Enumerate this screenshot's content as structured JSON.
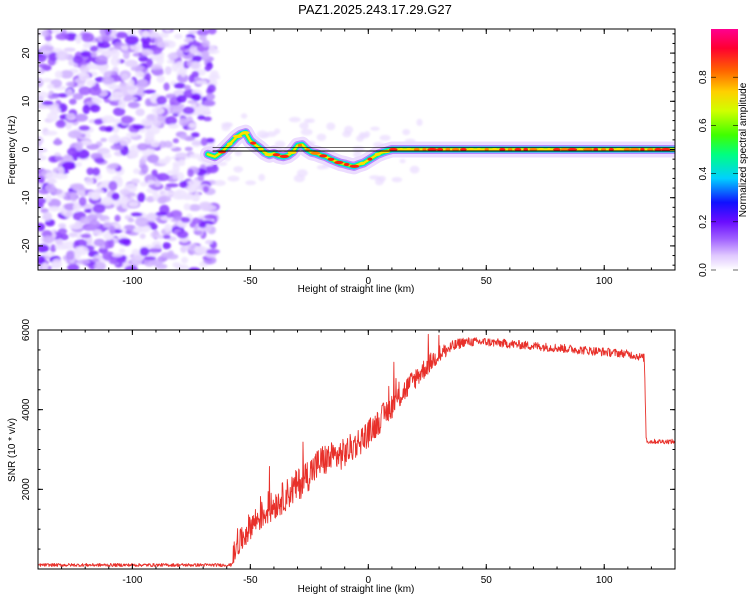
{
  "title": "PAZ1.2025.243.17.29.G27",
  "chart_data": [
    {
      "type": "heatmap",
      "xlabel": "Height of straight line (km)",
      "ylabel": "Frequency (Hz)",
      "xlim": [
        -140,
        130
      ],
      "ylim": [
        -25,
        25
      ],
      "xticks": [
        -100,
        -50,
        0,
        50,
        100
      ],
      "yticks": [
        -20,
        -10,
        0,
        10,
        20
      ],
      "noise_region_x": [
        -140,
        -65
      ],
      "ridge": {
        "x": [
          -68,
          -65,
          -62,
          -60,
          -58,
          -56,
          -54,
          -52,
          -50,
          -48,
          -46,
          -44,
          -42,
          -40,
          -38,
          -36,
          -34,
          -32,
          -30,
          -28,
          -26,
          -24,
          -22,
          -20,
          -18,
          -16,
          -14,
          -12,
          -10,
          -8,
          -6,
          -4,
          -2,
          0,
          2,
          4,
          6,
          8,
          10,
          12,
          15,
          20,
          25,
          30,
          40,
          50,
          60,
          70,
          80,
          90,
          100,
          110,
          120,
          130
        ],
        "y": [
          -1,
          -1.5,
          -0.5,
          0.5,
          1.5,
          2.5,
          3.2,
          3.5,
          1.8,
          1.0,
          0.3,
          -0.6,
          -1.1,
          -0.8,
          -1.3,
          -1.5,
          -1.2,
          -0.5,
          0.8,
          1.0,
          0.0,
          -0.6,
          -0.8,
          -1.2,
          -1.5,
          -2.0,
          -2.4,
          -2.8,
          -3.0,
          -3.3,
          -3.5,
          -3.1,
          -2.8,
          -2.2,
          -1.6,
          -1.0,
          -0.6,
          -0.3,
          0.0,
          0.0,
          0.0,
          0.0,
          0.0,
          0.0,
          0.0,
          0.0,
          0.0,
          0.0,
          0.0,
          0.0,
          0.0,
          0.0,
          0.0,
          0.0
        ]
      },
      "reference_line_y": 0
    },
    {
      "type": "line",
      "xlabel": "Height of straight line (km)",
      "ylabel": "SNR (10 * v/v)",
      "xlim": [
        -140,
        130
      ],
      "ylim": [
        0,
        6000
      ],
      "xticks": [
        -100,
        -50,
        0,
        50,
        100
      ],
      "yticks": [
        2000,
        4000,
        6000
      ],
      "color": "#e8302a",
      "envelope": {
        "x": [
          -140,
          -58,
          -57,
          -50,
          -40,
          -30,
          -20,
          -10,
          0,
          10,
          20,
          30,
          40,
          50,
          60,
          70,
          80,
          90,
          100,
          110,
          117,
          118,
          130
        ],
        "mean": [
          100,
          100,
          400,
          1100,
          1600,
          2100,
          2700,
          2900,
          3400,
          4100,
          4800,
          5400,
          5700,
          5700,
          5650,
          5600,
          5550,
          5500,
          5450,
          5400,
          5300,
          3200,
          3200
        ],
        "noise": [
          40,
          40,
          300,
          350,
          380,
          420,
          420,
          380,
          350,
          320,
          280,
          220,
          120,
          110,
          110,
          110,
          110,
          110,
          110,
          100,
          100,
          60,
          60
        ]
      }
    }
  ],
  "colorbar": {
    "label": "Normalized spectral amplitude",
    "range": [
      0,
      1
    ],
    "ticks": [
      "0.0",
      "0.2",
      "0.4",
      "0.6",
      "0.8"
    ],
    "tick_values": [
      0,
      0.2,
      0.4,
      0.6,
      0.8
    ],
    "colors": [
      "#ffffff",
      "#e8d8ff",
      "#9f5fff",
      "#6a0dff",
      "#0000ff",
      "#00e5ff",
      "#00ff66",
      "#b6ff00",
      "#ffff00",
      "#ffb000",
      "#ff4000",
      "#ff0050",
      "#ff0090"
    ]
  }
}
